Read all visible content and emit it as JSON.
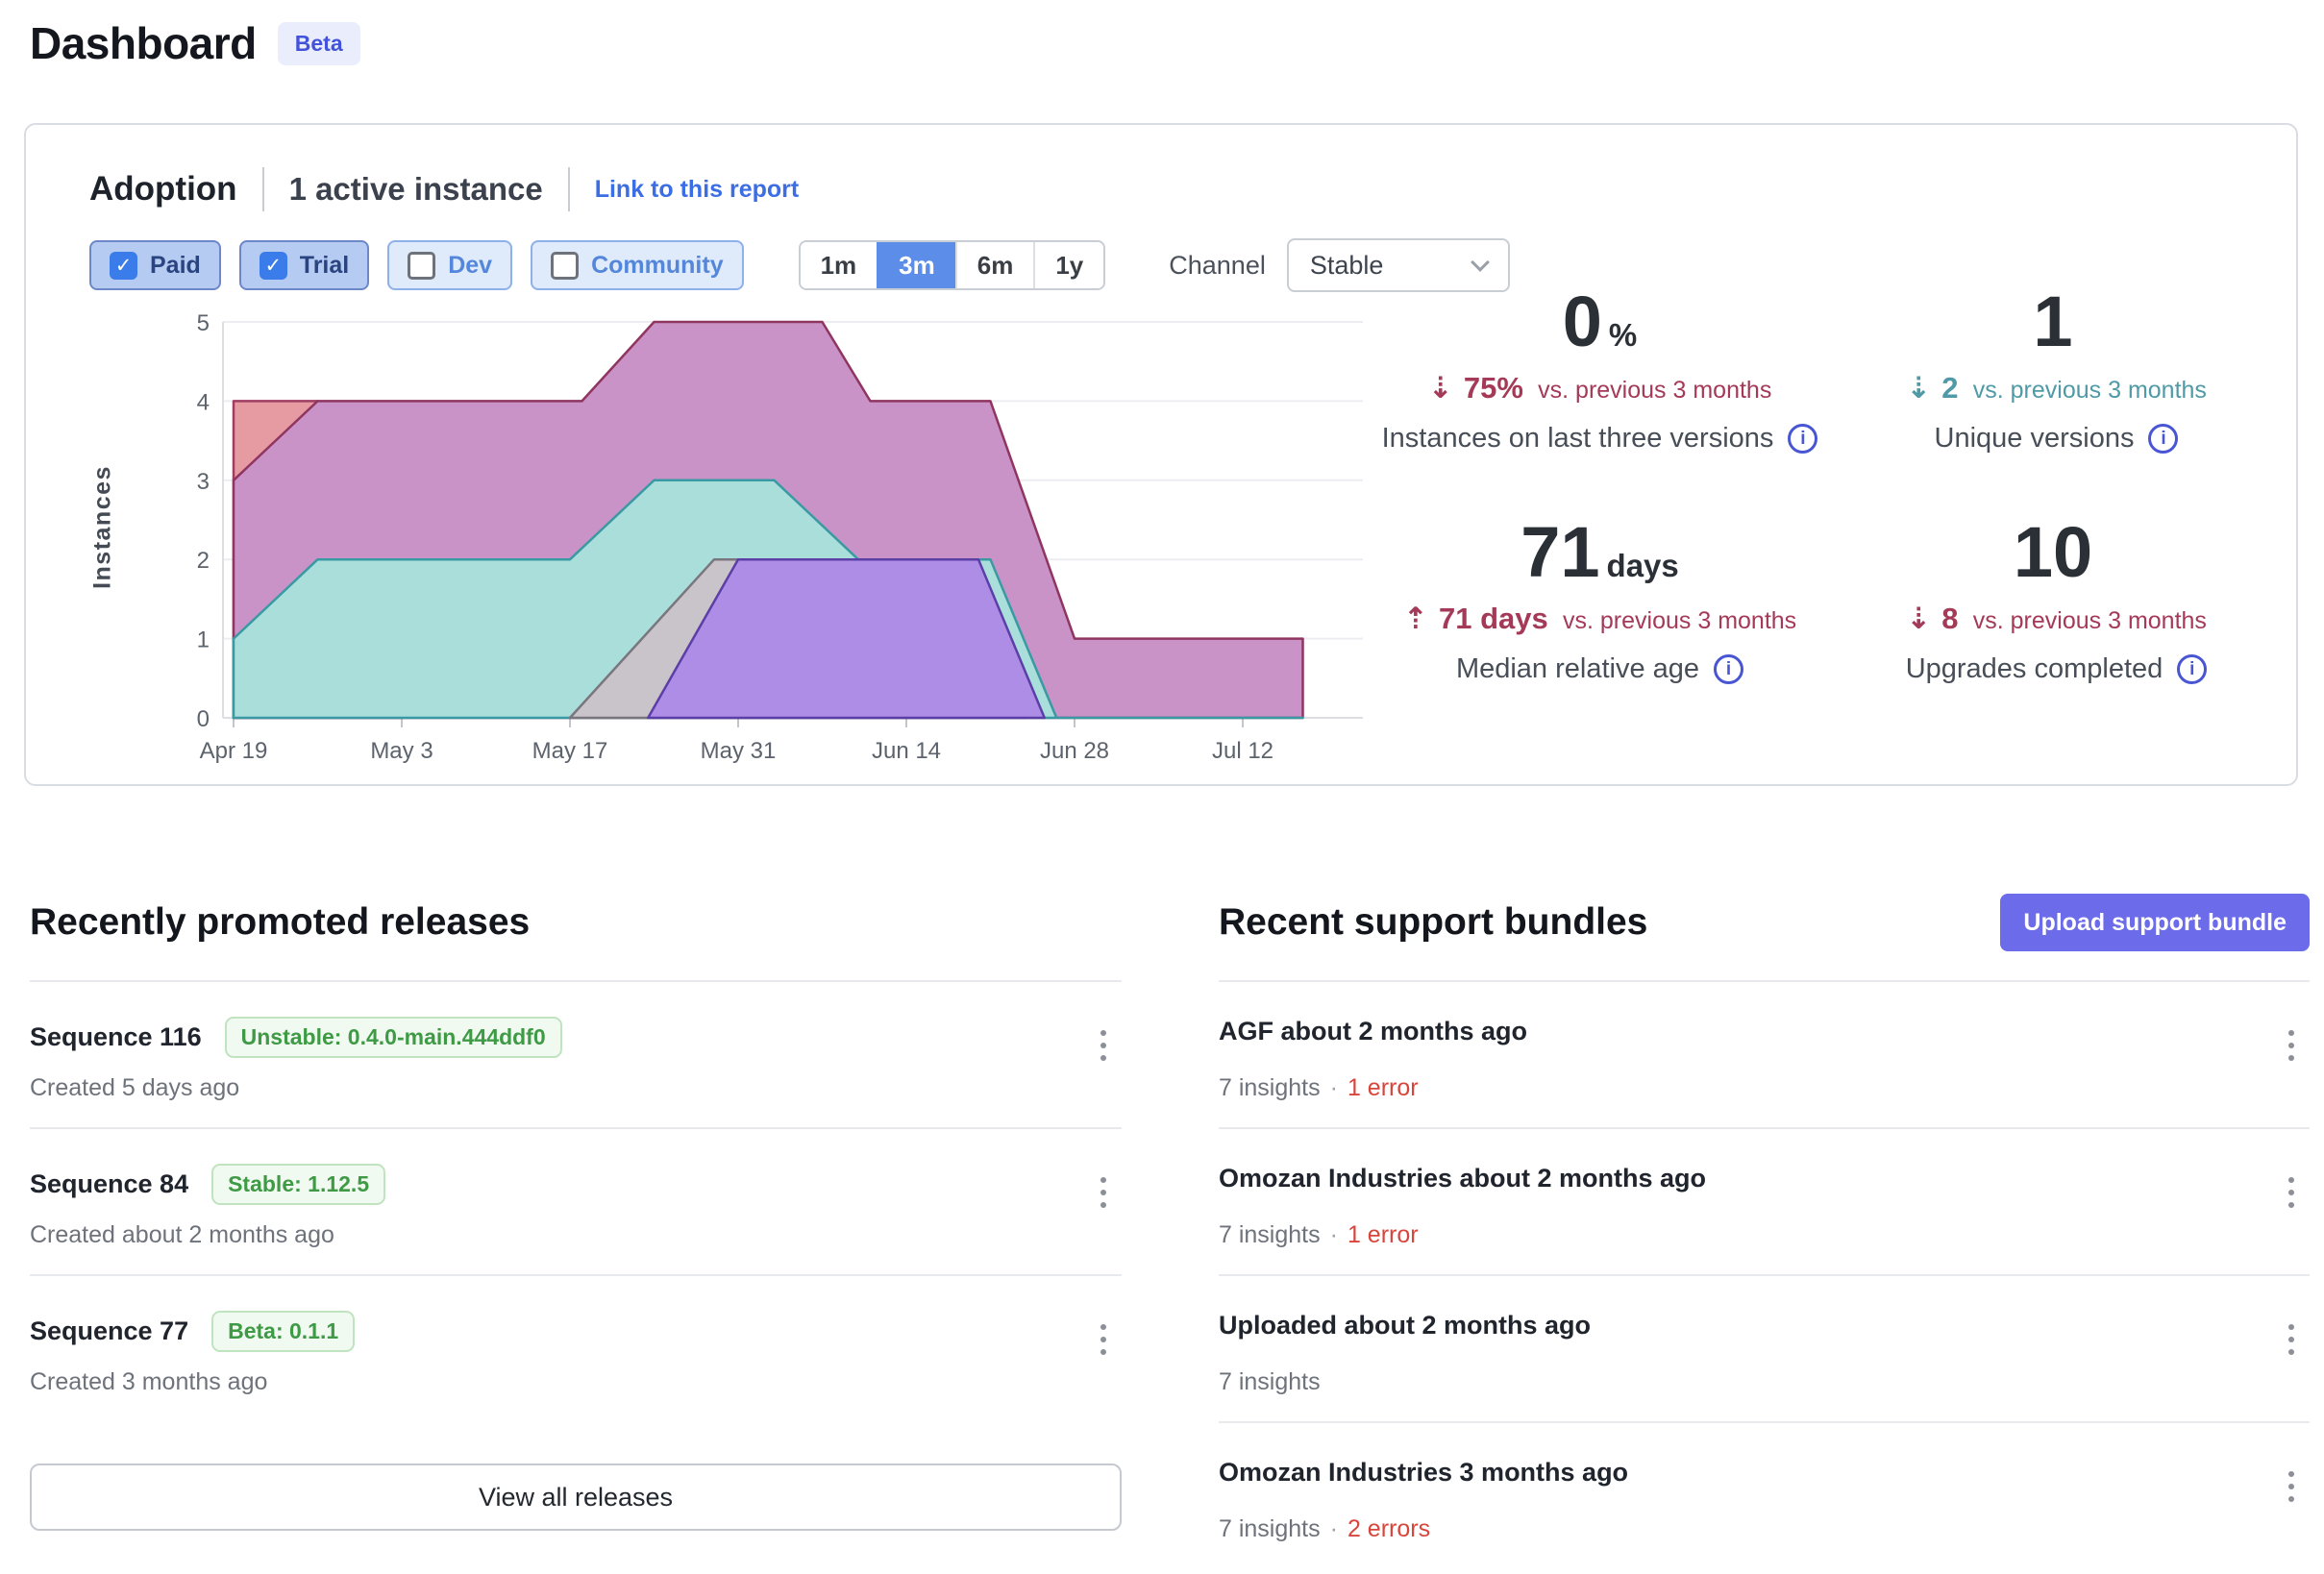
{
  "page": {
    "title": "Dashboard",
    "beta_badge": "Beta"
  },
  "adoption": {
    "title": "Adoption",
    "active_instances": "1 active instance",
    "link_label": "Link to this report",
    "filters": [
      {
        "label": "Paid",
        "checked": true
      },
      {
        "label": "Trial",
        "checked": true
      },
      {
        "label": "Dev",
        "checked": false
      },
      {
        "label": "Community",
        "checked": false
      }
    ],
    "ranges": [
      {
        "label": "1m",
        "selected": false
      },
      {
        "label": "3m",
        "selected": true
      },
      {
        "label": "6m",
        "selected": false
      },
      {
        "label": "1y",
        "selected": false
      }
    ],
    "channel_label": "Channel",
    "channel_value": "Stable",
    "stats": [
      {
        "value": "0",
        "unit": "%",
        "delta_arrow": "⇣",
        "delta_value": "75%",
        "delta_suffix": "vs. previous 3 months",
        "delta_color": "#a43a57",
        "label": "Instances on last three versions"
      },
      {
        "value": "1",
        "unit": "",
        "delta_arrow": "⇣",
        "delta_value": "2",
        "delta_suffix": "vs. previous 3 months",
        "delta_color": "#4f9aa6",
        "label": "Unique versions"
      },
      {
        "value": "71",
        "unit": "days",
        "delta_arrow": "⇡",
        "delta_value": "71 days",
        "delta_suffix": "vs. previous 3 months",
        "delta_color": "#a43a57",
        "label": "Median relative age"
      },
      {
        "value": "10",
        "unit": "",
        "delta_arrow": "⇣",
        "delta_value": "8",
        "delta_suffix": "vs. previous 3 months",
        "delta_color": "#a43a57",
        "label": "Upgrades completed"
      }
    ]
  },
  "chart_data": {
    "type": "area",
    "title": "Adoption — instances by version over time",
    "ylabel": "Instances",
    "ylim": [
      0,
      5
    ],
    "yticks": [
      0,
      1,
      2,
      3,
      4,
      5
    ],
    "grid": true,
    "legend": "none",
    "x_tick_labels": [
      "Apr 19",
      "May 3",
      "May 17",
      "May 31",
      "Jun 14",
      "Jun 28",
      "Jul 12"
    ],
    "x_tick_days": [
      0,
      14,
      28,
      42,
      56,
      70,
      84
    ],
    "x_end_day": 89,
    "series": [
      {
        "name": "version-salmon",
        "fill": "#e69aa2",
        "stroke": "#a03d62",
        "points": [
          [
            0,
            4
          ],
          [
            7,
            4
          ],
          [
            14,
            0
          ]
        ]
      },
      {
        "name": "version-mauve",
        "fill": "#c993c8",
        "stroke": "#8f3560",
        "points": [
          [
            0,
            3
          ],
          [
            7,
            4
          ],
          [
            29,
            4
          ],
          [
            35,
            5
          ],
          [
            49,
            5
          ],
          [
            53,
            4
          ],
          [
            63,
            4
          ],
          [
            70,
            1
          ],
          [
            89,
            1
          ]
        ]
      },
      {
        "name": "version-teal",
        "fill": "#a9dedb",
        "stroke": "#3a9aa3",
        "points": [
          [
            0,
            1
          ],
          [
            7,
            2
          ],
          [
            28,
            2
          ],
          [
            35,
            3
          ],
          [
            45,
            3
          ],
          [
            52,
            2
          ],
          [
            63,
            2
          ],
          [
            68.5,
            0
          ],
          [
            89,
            0
          ]
        ]
      },
      {
        "name": "version-gray",
        "fill": "#c9c4c9",
        "stroke": "#7a767e",
        "points": [
          [
            28,
            0
          ],
          [
            40,
            2
          ],
          [
            61,
            2
          ],
          [
            66,
            0
          ]
        ]
      },
      {
        "name": "version-purple",
        "fill": "#ad8de6",
        "stroke": "#5b3fa6",
        "points": [
          [
            34.5,
            0
          ],
          [
            42,
            2
          ],
          [
            62,
            2
          ],
          [
            67.5,
            0
          ]
        ]
      }
    ]
  },
  "releases": {
    "title": "Recently promoted releases",
    "view_all_label": "View all releases",
    "items": [
      {
        "title": "Sequence 116",
        "badge": "Unstable: 0.4.0-main.444ddf0",
        "created": "Created 5 days ago"
      },
      {
        "title": "Sequence 84",
        "badge": "Stable: 1.12.5",
        "created": "Created about 2 months ago"
      },
      {
        "title": "Sequence 77",
        "badge": "Beta: 0.1.1",
        "created": "Created 3 months ago"
      }
    ]
  },
  "bundles": {
    "title": "Recent support bundles",
    "upload_label": "Upload support bundle",
    "items": [
      {
        "title": "AGF about 2 months ago",
        "insights": "7 insights",
        "sep": "·",
        "errors": "1 error"
      },
      {
        "title": "Omozan Industries about 2 months ago",
        "insights": "7 insights",
        "sep": "·",
        "errors": "1 error"
      },
      {
        "title": "Uploaded about 2 months ago",
        "insights": "7 insights",
        "sep": "",
        "errors": ""
      },
      {
        "title": "Omozan Industries 3 months ago",
        "insights": "7 insights",
        "sep": "·",
        "errors": "2 errors"
      }
    ]
  },
  "colors": {
    "accent_blue": "#5b8de9",
    "link_blue": "#3b6ee4",
    "indigo_button": "#6c6cea",
    "badge_green": "#3e9a44",
    "error_red": "#d8453c",
    "delta_red": "#a43a57",
    "delta_teal": "#4f9aa6"
  }
}
